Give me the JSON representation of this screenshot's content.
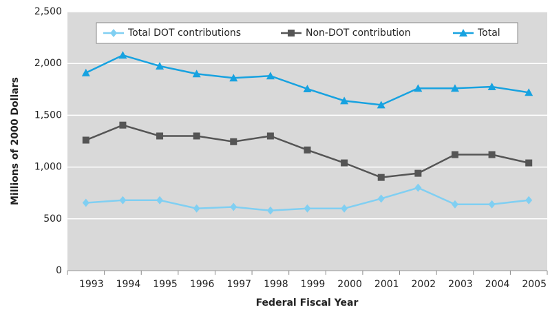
{
  "chart_data": {
    "type": "line",
    "x_label": "Federal Fiscal Year",
    "y_label": "Millions of 2000 Dollars",
    "categories": [
      "1993",
      "1994",
      "1995",
      "1996",
      "1997",
      "1998",
      "1999",
      "2000",
      "2001",
      "2002",
      "2003",
      "2004",
      "2005"
    ],
    "series": [
      {
        "name": "Total DOT contributions",
        "color": "#80cff2",
        "marker": "diamond",
        "values": [
          655,
          680,
          680,
          600,
          615,
          580,
          600,
          600,
          695,
          800,
          640,
          640,
          680
        ]
      },
      {
        "name": "Non-DOT contribution",
        "color": "#555555",
        "marker": "square",
        "values": [
          1260,
          1405,
          1300,
          1300,
          1245,
          1300,
          1165,
          1040,
          900,
          940,
          1120,
          1120,
          1040
        ]
      },
      {
        "name": "Total",
        "color": "#17a2e0",
        "marker": "triangle",
        "values": [
          1910,
          2080,
          1975,
          1900,
          1860,
          1880,
          1755,
          1640,
          1600,
          1760,
          1760,
          1775,
          1720
        ]
      }
    ],
    "ylim": [
      0,
      2500
    ],
    "yticks": [
      0,
      500,
      {
        "value": 1000,
        "label": "1,000"
      },
      {
        "value": 1500,
        "label": "1,500"
      },
      {
        "value": 2000,
        "label": "2,000"
      },
      {
        "value": 2500,
        "label": "2,500"
      }
    ],
    "grid": true,
    "legend": "top"
  }
}
